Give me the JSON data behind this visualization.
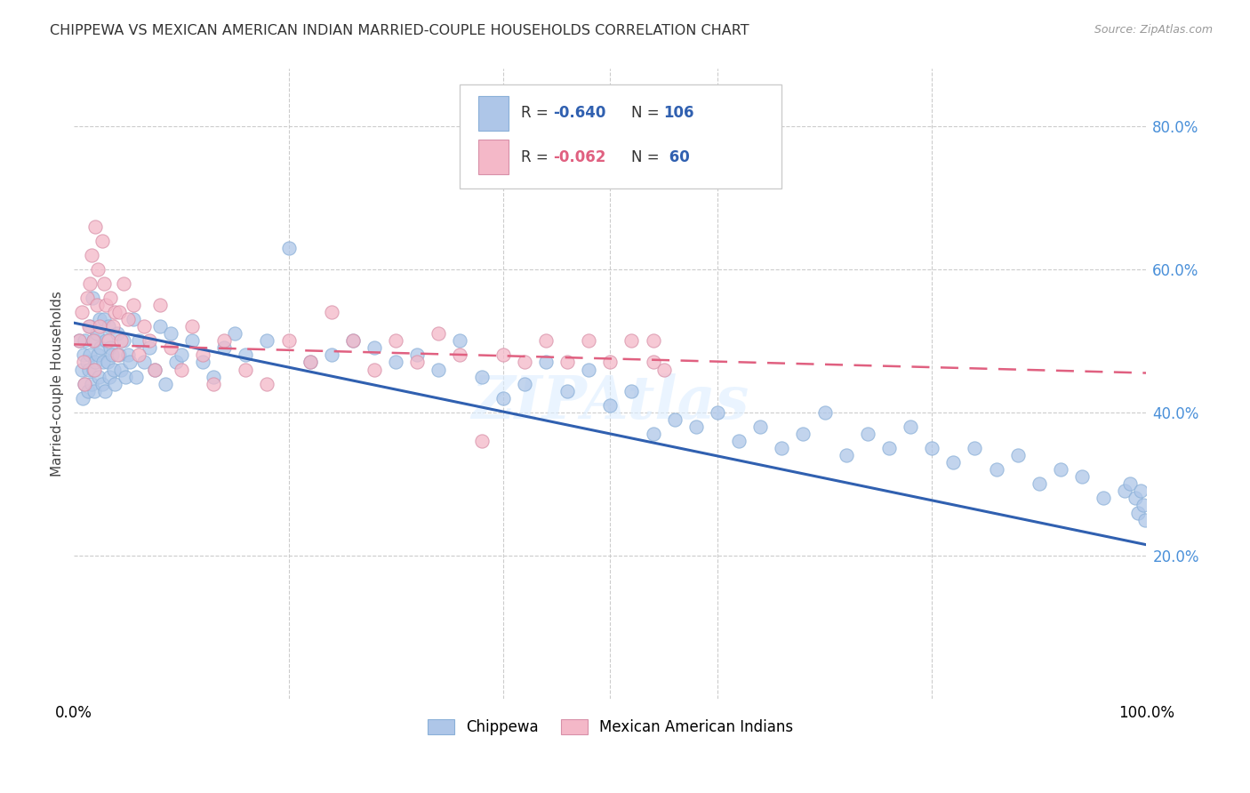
{
  "title": "CHIPPEWA VS MEXICAN AMERICAN INDIAN MARRIED-COUPLE HOUSEHOLDS CORRELATION CHART",
  "source": "Source: ZipAtlas.com",
  "ylabel": "Married-couple Households",
  "watermark": "ZIPAtlas",
  "legend_label1": "Chippewa",
  "legend_label2": "Mexican American Indians",
  "chippewa_color": "#aec6e8",
  "mexican_color": "#f4b8c8",
  "chippewa_line_color": "#3060b0",
  "mexican_line_color": "#e06080",
  "ytick_labels": [
    "20.0%",
    "40.0%",
    "60.0%",
    "80.0%"
  ],
  "ytick_values": [
    0.2,
    0.4,
    0.6,
    0.8
  ],
  "xlim": [
    0.0,
    1.0
  ],
  "ylim": [
    0.0,
    0.88
  ],
  "background_color": "#ffffff",
  "grid_color": "#cccccc",
  "chippewa_line_start_y": 0.525,
  "chippewa_line_end_y": 0.215,
  "mexican_line_start_y": 0.495,
  "mexican_line_end_y": 0.455,
  "chippewa_x": [
    0.005,
    0.007,
    0.008,
    0.009,
    0.01,
    0.01,
    0.012,
    0.013,
    0.014,
    0.015,
    0.015,
    0.016,
    0.017,
    0.018,
    0.018,
    0.019,
    0.02,
    0.02,
    0.021,
    0.022,
    0.023,
    0.024,
    0.025,
    0.026,
    0.027,
    0.028,
    0.029,
    0.03,
    0.031,
    0.032,
    0.033,
    0.034,
    0.035,
    0.037,
    0.038,
    0.04,
    0.042,
    0.044,
    0.046,
    0.048,
    0.05,
    0.052,
    0.055,
    0.058,
    0.06,
    0.065,
    0.07,
    0.075,
    0.08,
    0.085,
    0.09,
    0.095,
    0.1,
    0.11,
    0.12,
    0.13,
    0.14,
    0.15,
    0.16,
    0.18,
    0.2,
    0.22,
    0.24,
    0.26,
    0.28,
    0.3,
    0.32,
    0.34,
    0.36,
    0.38,
    0.4,
    0.42,
    0.44,
    0.46,
    0.48,
    0.5,
    0.52,
    0.54,
    0.56,
    0.58,
    0.6,
    0.62,
    0.64,
    0.66,
    0.68,
    0.7,
    0.72,
    0.74,
    0.76,
    0.78,
    0.8,
    0.82,
    0.84,
    0.86,
    0.88,
    0.9,
    0.92,
    0.94,
    0.96,
    0.98,
    0.985,
    0.99,
    0.992,
    0.995,
    0.997,
    0.999
  ],
  "chippewa_y": [
    0.5,
    0.46,
    0.42,
    0.48,
    0.44,
    0.5,
    0.47,
    0.43,
    0.46,
    0.52,
    0.48,
    0.44,
    0.56,
    0.5,
    0.46,
    0.43,
    0.5,
    0.47,
    0.51,
    0.48,
    0.45,
    0.53,
    0.49,
    0.44,
    0.47,
    0.53,
    0.43,
    0.5,
    0.47,
    0.52,
    0.45,
    0.49,
    0.48,
    0.46,
    0.44,
    0.51,
    0.48,
    0.46,
    0.5,
    0.45,
    0.48,
    0.47,
    0.53,
    0.45,
    0.5,
    0.47,
    0.49,
    0.46,
    0.52,
    0.44,
    0.51,
    0.47,
    0.48,
    0.5,
    0.47,
    0.45,
    0.49,
    0.51,
    0.48,
    0.5,
    0.63,
    0.47,
    0.48,
    0.5,
    0.49,
    0.47,
    0.48,
    0.46,
    0.5,
    0.45,
    0.42,
    0.44,
    0.47,
    0.43,
    0.46,
    0.41,
    0.43,
    0.37,
    0.39,
    0.38,
    0.4,
    0.36,
    0.38,
    0.35,
    0.37,
    0.4,
    0.34,
    0.37,
    0.35,
    0.38,
    0.35,
    0.33,
    0.35,
    0.32,
    0.34,
    0.3,
    0.32,
    0.31,
    0.28,
    0.29,
    0.3,
    0.28,
    0.26,
    0.29,
    0.27,
    0.25
  ],
  "mexican_x": [
    0.005,
    0.007,
    0.009,
    0.01,
    0.012,
    0.014,
    0.015,
    0.016,
    0.018,
    0.019,
    0.02,
    0.021,
    0.022,
    0.024,
    0.026,
    0.028,
    0.03,
    0.032,
    0.034,
    0.036,
    0.038,
    0.04,
    0.042,
    0.044,
    0.046,
    0.05,
    0.055,
    0.06,
    0.065,
    0.07,
    0.075,
    0.08,
    0.09,
    0.1,
    0.11,
    0.12,
    0.13,
    0.14,
    0.16,
    0.18,
    0.2,
    0.22,
    0.24,
    0.26,
    0.28,
    0.3,
    0.32,
    0.34,
    0.36,
    0.38,
    0.4,
    0.42,
    0.44,
    0.46,
    0.48,
    0.5,
    0.52,
    0.54,
    0.54,
    0.55
  ],
  "mexican_y": [
    0.5,
    0.54,
    0.47,
    0.44,
    0.56,
    0.52,
    0.58,
    0.62,
    0.5,
    0.46,
    0.66,
    0.55,
    0.6,
    0.52,
    0.64,
    0.58,
    0.55,
    0.5,
    0.56,
    0.52,
    0.54,
    0.48,
    0.54,
    0.5,
    0.58,
    0.53,
    0.55,
    0.48,
    0.52,
    0.5,
    0.46,
    0.55,
    0.49,
    0.46,
    0.52,
    0.48,
    0.44,
    0.5,
    0.46,
    0.44,
    0.5,
    0.47,
    0.54,
    0.5,
    0.46,
    0.5,
    0.47,
    0.51,
    0.48,
    0.36,
    0.48,
    0.47,
    0.5,
    0.47,
    0.5,
    0.47,
    0.5,
    0.47,
    0.5,
    0.46
  ]
}
